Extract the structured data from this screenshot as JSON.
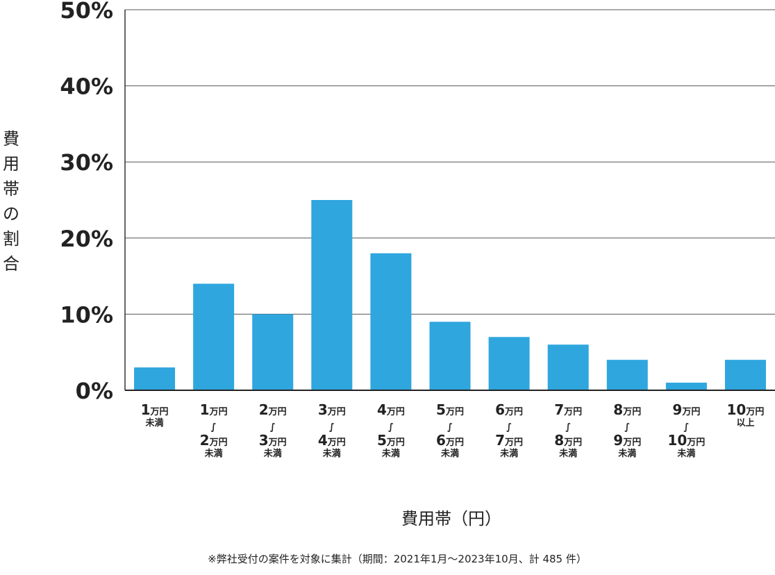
{
  "chart_data": {
    "type": "bar",
    "ylabel": "費用帯の割合",
    "xlabel": "費用帯（円）",
    "note": "※弊社受付の案件を対象に集計（期間：2021年1月～2023年10月、計 485 件）",
    "ylim": [
      0,
      50
    ],
    "yticks": [
      "0%",
      "10%",
      "20%",
      "30%",
      "40%",
      "50%"
    ],
    "grid": true,
    "bar_color": "#2fa6de",
    "categories": [
      [
        {
          "n": "1",
          "u": "万円"
        },
        {
          "s": "未満"
        }
      ],
      [
        {
          "n": "1",
          "u": "万円"
        },
        {
          "w": "∫"
        },
        {
          "n": "2",
          "u": "万円"
        },
        {
          "s": "未満"
        }
      ],
      [
        {
          "n": "2",
          "u": "万円"
        },
        {
          "w": "∫"
        },
        {
          "n": "3",
          "u": "万円"
        },
        {
          "s": "未満"
        }
      ],
      [
        {
          "n": "3",
          "u": "万円"
        },
        {
          "w": "∫"
        },
        {
          "n": "4",
          "u": "万円"
        },
        {
          "s": "未満"
        }
      ],
      [
        {
          "n": "4",
          "u": "万円"
        },
        {
          "w": "∫"
        },
        {
          "n": "5",
          "u": "万円"
        },
        {
          "s": "未満"
        }
      ],
      [
        {
          "n": "5",
          "u": "万円"
        },
        {
          "w": "∫"
        },
        {
          "n": "6",
          "u": "万円"
        },
        {
          "s": "未満"
        }
      ],
      [
        {
          "n": "6",
          "u": "万円"
        },
        {
          "w": "∫"
        },
        {
          "n": "7",
          "u": "万円"
        },
        {
          "s": "未満"
        }
      ],
      [
        {
          "n": "7",
          "u": "万円"
        },
        {
          "w": "∫"
        },
        {
          "n": "8",
          "u": "万円"
        },
        {
          "s": "未満"
        }
      ],
      [
        {
          "n": "8",
          "u": "万円"
        },
        {
          "w": "∫"
        },
        {
          "n": "9",
          "u": "万円"
        },
        {
          "s": "未満"
        }
      ],
      [
        {
          "n": "9",
          "u": "万円"
        },
        {
          "w": "∫"
        },
        {
          "n": "10",
          "u": "万円"
        },
        {
          "s": "未満"
        }
      ],
      [
        {
          "n": "10",
          "u": "万円"
        },
        {
          "s": "以上"
        }
      ]
    ],
    "values": [
      3,
      14,
      10,
      25,
      18,
      9,
      7,
      6,
      4,
      1,
      4
    ]
  }
}
